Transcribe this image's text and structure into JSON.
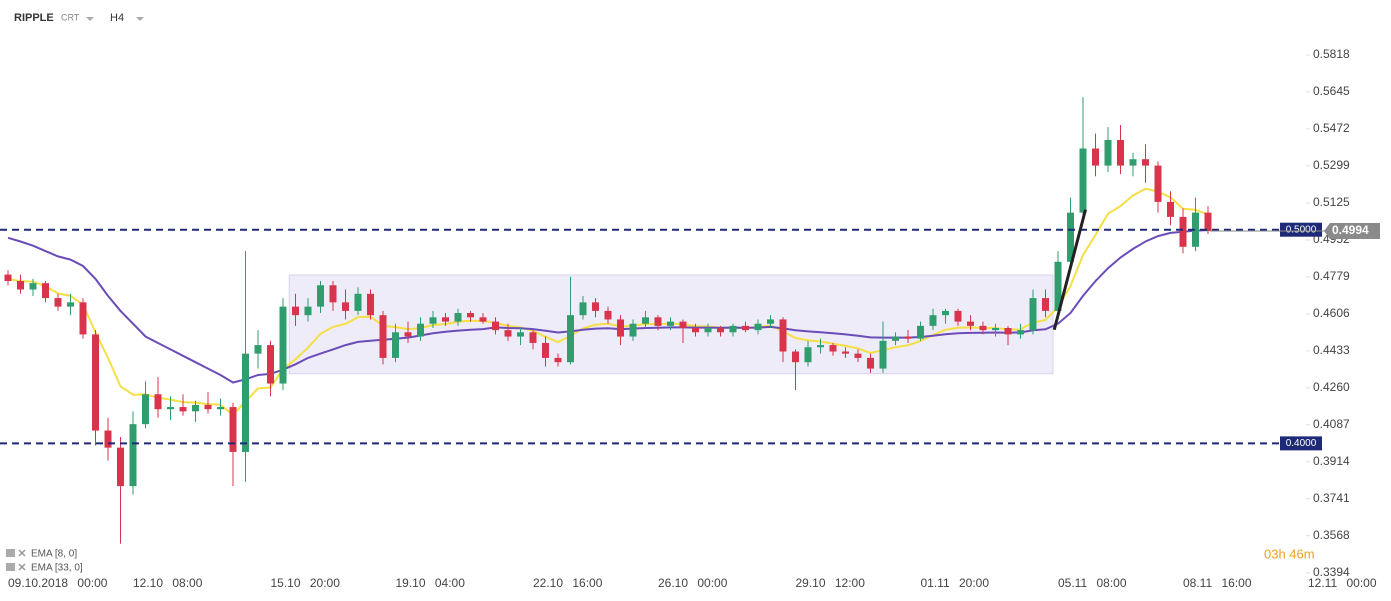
{
  "header": {
    "symbol": "RIPPLE",
    "source": "CRT",
    "timeframe": "H4"
  },
  "chart_data": {
    "type": "candlestick",
    "categories": [
      "09.10.2018 00:00",
      null,
      null,
      null,
      null,
      null,
      null,
      null,
      null,
      null,
      "12.10 08:00",
      null,
      null,
      null,
      null,
      null,
      null,
      null,
      null,
      null,
      null,
      "15.10 20:00",
      null,
      null,
      null,
      null,
      null,
      null,
      null,
      null,
      null,
      "19.10 04:00",
      null,
      null,
      null,
      null,
      null,
      null,
      null,
      null,
      null,
      null,
      "22.10 16:00",
      null,
      null,
      null,
      null,
      null,
      null,
      null,
      null,
      null,
      "26.10 00:00",
      null,
      null,
      null,
      null,
      null,
      null,
      null,
      null,
      null,
      null,
      "29.10 12:00",
      null,
      null,
      null,
      null,
      null,
      null,
      null,
      null,
      null,
      "01.11 20:00",
      null,
      null,
      null,
      null,
      null,
      null,
      null,
      null,
      null,
      null,
      "05.11 08:00",
      null,
      null,
      null,
      null,
      null,
      null,
      null,
      null,
      null,
      "08.11 16:00",
      null,
      null,
      null,
      null,
      null,
      null,
      null,
      null,
      null,
      "12.11 00:00"
    ],
    "candles": [
      [
        0.479,
        0.481,
        0.474,
        0.476
      ],
      [
        0.476,
        0.479,
        0.47,
        0.472
      ],
      [
        0.472,
        0.477,
        0.469,
        0.475
      ],
      [
        0.475,
        0.476,
        0.466,
        0.468
      ],
      [
        0.468,
        0.47,
        0.462,
        0.464
      ],
      [
        0.464,
        0.47,
        0.46,
        0.466
      ],
      [
        0.466,
        0.468,
        0.449,
        0.451
      ],
      [
        0.451,
        0.453,
        0.399,
        0.406
      ],
      [
        0.406,
        0.412,
        0.392,
        0.398
      ],
      [
        0.398,
        0.403,
        0.353,
        0.38
      ],
      [
        0.38,
        0.415,
        0.376,
        0.409
      ],
      [
        0.409,
        0.429,
        0.407,
        0.423
      ],
      [
        0.423,
        0.431,
        0.412,
        0.416
      ],
      [
        0.416,
        0.422,
        0.411,
        0.417
      ],
      [
        0.417,
        0.423,
        0.413,
        0.415
      ],
      [
        0.415,
        0.42,
        0.41,
        0.418
      ],
      [
        0.418,
        0.424,
        0.414,
        0.416
      ],
      [
        0.416,
        0.421,
        0.413,
        0.417
      ],
      [
        0.417,
        0.419,
        0.38,
        0.396
      ],
      [
        0.396,
        0.49,
        0.382,
        0.442
      ],
      [
        0.442,
        0.453,
        0.435,
        0.446
      ],
      [
        0.446,
        0.448,
        0.422,
        0.428
      ],
      [
        0.428,
        0.468,
        0.425,
        0.464
      ],
      [
        0.464,
        0.47,
        0.455,
        0.46
      ],
      [
        0.46,
        0.468,
        0.457,
        0.464
      ],
      [
        0.464,
        0.476,
        0.461,
        0.474
      ],
      [
        0.474,
        0.476,
        0.462,
        0.466
      ],
      [
        0.466,
        0.472,
        0.458,
        0.462
      ],
      [
        0.462,
        0.473,
        0.46,
        0.47
      ],
      [
        0.47,
        0.472,
        0.458,
        0.46
      ],
      [
        0.46,
        0.462,
        0.437,
        0.44
      ],
      [
        0.44,
        0.456,
        0.438,
        0.452
      ],
      [
        0.452,
        0.457,
        0.447,
        0.45
      ],
      [
        0.45,
        0.459,
        0.448,
        0.456
      ],
      [
        0.456,
        0.462,
        0.454,
        0.459
      ],
      [
        0.459,
        0.461,
        0.455,
        0.457
      ],
      [
        0.457,
        0.463,
        0.455,
        0.461
      ],
      [
        0.461,
        0.462,
        0.457,
        0.459
      ],
      [
        0.459,
        0.461,
        0.456,
        0.457
      ],
      [
        0.457,
        0.459,
        0.451,
        0.453
      ],
      [
        0.453,
        0.456,
        0.448,
        0.45
      ],
      [
        0.45,
        0.454,
        0.446,
        0.452
      ],
      [
        0.452,
        0.453,
        0.444,
        0.447
      ],
      [
        0.447,
        0.45,
        0.436,
        0.44
      ],
      [
        0.44,
        0.442,
        0.436,
        0.438
      ],
      [
        0.438,
        0.478,
        0.437,
        0.46
      ],
      [
        0.46,
        0.469,
        0.458,
        0.466
      ],
      [
        0.466,
        0.468,
        0.459,
        0.462
      ],
      [
        0.462,
        0.464,
        0.456,
        0.458
      ],
      [
        0.458,
        0.46,
        0.446,
        0.45
      ],
      [
        0.45,
        0.458,
        0.448,
        0.456
      ],
      [
        0.456,
        0.462,
        0.454,
        0.459
      ],
      [
        0.459,
        0.46,
        0.453,
        0.455
      ],
      [
        0.455,
        0.459,
        0.453,
        0.457
      ],
      [
        0.457,
        0.458,
        0.447,
        0.454
      ],
      [
        0.454,
        0.456,
        0.45,
        0.452
      ],
      [
        0.452,
        0.456,
        0.45,
        0.454
      ],
      [
        0.454,
        0.455,
        0.45,
        0.452
      ],
      [
        0.452,
        0.456,
        0.45,
        0.455
      ],
      [
        0.455,
        0.457,
        0.452,
        0.453
      ],
      [
        0.453,
        0.458,
        0.451,
        0.456
      ],
      [
        0.456,
        0.46,
        0.454,
        0.458
      ],
      [
        0.458,
        0.459,
        0.438,
        0.443
      ],
      [
        0.443,
        0.444,
        0.425,
        0.438
      ],
      [
        0.438,
        0.448,
        0.436,
        0.445
      ],
      [
        0.445,
        0.449,
        0.442,
        0.446
      ],
      [
        0.446,
        0.447,
        0.441,
        0.443
      ],
      [
        0.443,
        0.445,
        0.44,
        0.442
      ],
      [
        0.442,
        0.444,
        0.438,
        0.44
      ],
      [
        0.44,
        0.442,
        0.433,
        0.435
      ],
      [
        0.435,
        0.457,
        0.433,
        0.448
      ],
      [
        0.448,
        0.452,
        0.446,
        0.45
      ],
      [
        0.45,
        0.453,
        0.447,
        0.449
      ],
      [
        0.449,
        0.457,
        0.448,
        0.455
      ],
      [
        0.455,
        0.463,
        0.453,
        0.46
      ],
      [
        0.46,
        0.463,
        0.456,
        0.462
      ],
      [
        0.462,
        0.463,
        0.455,
        0.457
      ],
      [
        0.457,
        0.46,
        0.453,
        0.455
      ],
      [
        0.455,
        0.457,
        0.451,
        0.453
      ],
      [
        0.453,
        0.456,
        0.45,
        0.454
      ],
      [
        0.454,
        0.455,
        0.446,
        0.451
      ],
      [
        0.451,
        0.456,
        0.449,
        0.453
      ],
      [
        0.453,
        0.472,
        0.451,
        0.468
      ],
      [
        0.468,
        0.472,
        0.459,
        0.462
      ],
      [
        0.462,
        0.49,
        0.46,
        0.485
      ],
      [
        0.485,
        0.515,
        0.483,
        0.508
      ],
      [
        0.508,
        0.562,
        0.505,
        0.538
      ],
      [
        0.538,
        0.545,
        0.525,
        0.53
      ],
      [
        0.53,
        0.548,
        0.527,
        0.542
      ],
      [
        0.542,
        0.549,
        0.526,
        0.53
      ],
      [
        0.53,
        0.536,
        0.525,
        0.533
      ],
      [
        0.533,
        0.54,
        0.522,
        0.53
      ],
      [
        0.53,
        0.532,
        0.508,
        0.513
      ],
      [
        0.513,
        0.518,
        0.502,
        0.506
      ],
      [
        0.506,
        0.51,
        0.489,
        0.492
      ],
      [
        0.492,
        0.515,
        0.49,
        0.508
      ],
      [
        0.508,
        0.511,
        0.498,
        0.4994
      ],
      null,
      null,
      null,
      null,
      null,
      null,
      null,
      null
    ],
    "up_color": "#2f9d6e",
    "down_color": "#d8354d",
    "series": [
      {
        "name": "EMA [8, 0]",
        "color": "#f4df45",
        "values": [
          0.477,
          0.4759,
          0.4757,
          0.4735,
          0.4702,
          0.469,
          0.465,
          0.4519,
          0.44,
          0.4267,
          0.4228,
          0.4229,
          0.4214,
          0.4205,
          0.4193,
          0.4191,
          0.4184,
          0.4181,
          0.4133,
          0.4197,
          0.4257,
          0.4262,
          0.4347,
          0.4394,
          0.4448,
          0.4513,
          0.4545,
          0.4559,
          0.4591,
          0.4593,
          0.455,
          0.4544,
          0.4535,
          0.454,
          0.4554,
          0.4558,
          0.457,
          0.4574,
          0.4573,
          0.4564,
          0.455,
          0.4543,
          0.4527,
          0.4499,
          0.4474,
          0.4503,
          0.4538,
          0.4555,
          0.456,
          0.4547,
          0.455,
          0.4559,
          0.4558,
          0.4561,
          0.4557,
          0.4549,
          0.4547,
          0.4541,
          0.4543,
          0.454,
          0.4544,
          0.4552,
          0.4524,
          0.4493,
          0.4482,
          0.4477,
          0.4467,
          0.4456,
          0.4444,
          0.4423,
          0.4436,
          0.445,
          0.4459,
          0.4479,
          0.4507,
          0.4532,
          0.4541,
          0.4543,
          0.454,
          0.454,
          0.4533,
          0.4533,
          0.4566,
          0.4578,
          0.4638,
          0.4737,
          0.4881,
          0.4975,
          0.5075,
          0.5111,
          0.516,
          0.5192,
          0.5178,
          0.5151,
          0.5098,
          0.5093,
          0.5071,
          null,
          null,
          null,
          null,
          null,
          null,
          null,
          null
        ]
      },
      {
        "name": "EMA [33, 0]",
        "color": "#6a4db8",
        "values": [
          0.4962,
          0.4945,
          0.4925,
          0.49,
          0.4875,
          0.486,
          0.483,
          0.477,
          0.469,
          0.462,
          0.456,
          0.45,
          0.447,
          0.444,
          0.441,
          0.438,
          0.435,
          0.432,
          0.4285,
          0.43,
          0.432,
          0.4325,
          0.4345,
          0.437,
          0.44,
          0.442,
          0.444,
          0.446,
          0.4475,
          0.448,
          0.4485,
          0.449,
          0.4495,
          0.4505,
          0.4515,
          0.4522,
          0.4528,
          0.4532,
          0.4535,
          0.4543,
          0.454,
          0.4539,
          0.4535,
          0.4527,
          0.4519,
          0.4524,
          0.4532,
          0.4537,
          0.4539,
          0.4535,
          0.4537,
          0.454,
          0.4541,
          0.4543,
          0.4543,
          0.4542,
          0.4542,
          0.4541,
          0.4542,
          0.4541,
          0.4542,
          0.4545,
          0.4538,
          0.4529,
          0.4524,
          0.452,
          0.4515,
          0.451,
          0.4504,
          0.4496,
          0.4495,
          0.4495,
          0.4495,
          0.4498,
          0.4504,
          0.4511,
          0.4515,
          0.4517,
          0.4518,
          0.4519,
          0.4518,
          0.4519,
          0.4529,
          0.4534,
          0.456,
          0.461,
          0.469,
          0.476,
          0.482,
          0.487,
          0.491,
          0.4945,
          0.497,
          0.4985,
          0.499,
          0.4996,
          0.4998,
          null,
          null,
          null,
          null,
          null,
          null,
          null,
          null
        ]
      }
    ],
    "ylim": [
      0.3384,
      0.5944
    ],
    "yticks": [
      0.5818,
      0.5645,
      0.5472,
      0.5299,
      0.5125,
      0.4952,
      0.4779,
      0.4606,
      0.4433,
      {
        "value": 0.426,
        "label": "0.4260"
      },
      0.4087,
      0.3914,
      0.3741,
      0.3568,
      0.3394
    ],
    "hlines": [
      {
        "value": 0.5,
        "label": "0.5000"
      },
      {
        "value": 0.4,
        "label": "0.4000"
      }
    ],
    "hline_color": "#1e2a78",
    "last_price": 0.4994,
    "range_box": {
      "x": [
        22.5,
        83.6
      ],
      "y": [
        0.4326,
        0.4788
      ]
    },
    "trend_line": {
      "x": [
        83.7,
        86.2
      ],
      "y": [
        0.4532,
        0.5094
      ]
    },
    "timer": "03h 46m"
  }
}
